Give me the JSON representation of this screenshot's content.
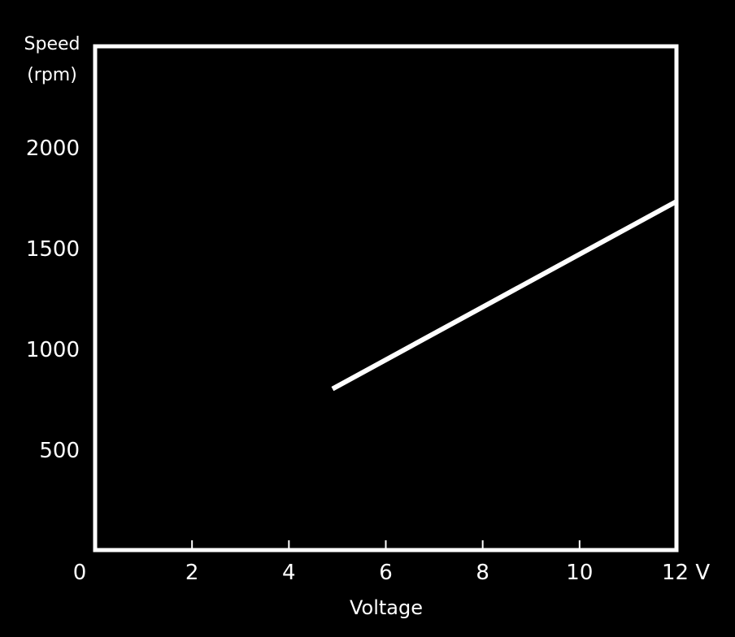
{
  "chart_data": {
    "type": "line",
    "title": "",
    "ylabel_lines": [
      "Speed",
      "(rpm)"
    ],
    "xlabel": "Voltage",
    "x_unit": "V",
    "xlim": [
      0,
      12
    ],
    "ylim": [
      0,
      2500
    ],
    "xticks": [
      0,
      2,
      4,
      6,
      8,
      10,
      12
    ],
    "xtick_labels": [
      "0",
      "2",
      "4",
      "6",
      "8",
      "10",
      "12 V"
    ],
    "yticks": [
      500,
      1000,
      1500,
      2000
    ],
    "ytick_labels": [
      "500",
      "1000",
      "1500",
      "2000"
    ],
    "grid": "horizontal",
    "legend": "none",
    "series": [
      {
        "x": [
          4.9,
          12
        ],
        "y": [
          800,
          1730
        ]
      }
    ],
    "colors": {
      "background": "#000000",
      "frame": "#ffffff",
      "line": "#ffffff",
      "text": "#ffffff",
      "grid": "#555555"
    }
  }
}
